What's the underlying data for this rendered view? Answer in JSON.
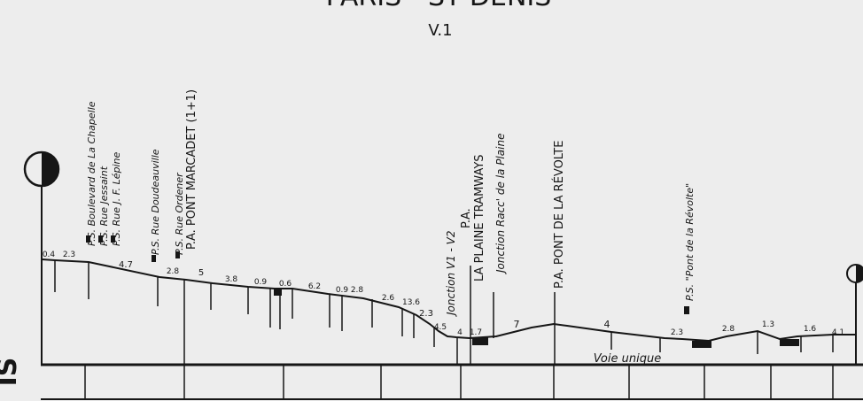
{
  "header": {
    "title": "PARIS - ST DENIS",
    "track": "V.1"
  },
  "edge_label": "IS",
  "track_label": "Voie unique",
  "annotations": [
    "P.S. Boulevard de La Chapelle",
    "P.S. Rue Jessaint",
    "P.S. Rue J. F. Lépine",
    "P.S. Rue Doudeauville",
    "P.S. Rue Ordener",
    "P.A. PONT MARCADET (1+1)",
    "Jonction V1 - V2",
    "P.A.",
    "LA PLAINE TRAMWAYS",
    "Jonction Racc' de la Plaine",
    "P.A. PONT DE LA RÉVOLTE",
    "P.S. \"Pont de la Révolte\""
  ],
  "gradients": [
    "0.4",
    "2.3",
    "4.7",
    "2.8",
    "5",
    "3.8",
    "0.9",
    "0.6",
    "6.2",
    "0.9",
    "2.8",
    "2.6",
    "13.6",
    "2.3",
    "4.5",
    "4",
    "1.7",
    "7",
    "4",
    "2.3",
    "2.8",
    "1.3",
    "1.6",
    "4.1"
  ]
}
